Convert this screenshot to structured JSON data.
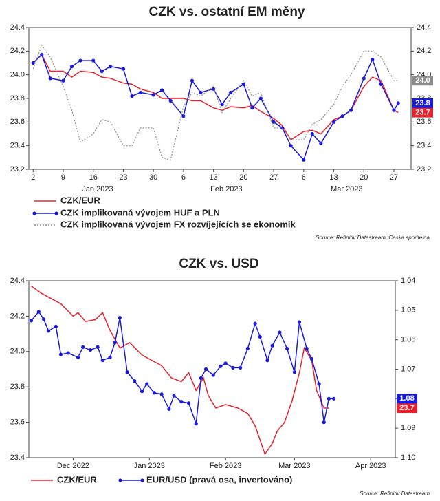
{
  "chart_data": [
    {
      "type": "line",
      "title": "CZK vs. ostatní EM měny",
      "x": [
        2,
        4,
        6,
        9,
        11,
        13,
        16,
        18,
        20,
        23,
        25,
        27,
        30,
        32,
        34,
        37,
        39,
        41,
        44,
        46,
        48,
        51,
        53,
        55,
        58,
        60,
        62,
        65,
        67,
        69,
        72,
        74,
        76,
        79,
        81,
        83,
        86,
        87
      ],
      "series": [
        {
          "name": "CZK/EUR",
          "color": "#e8202a",
          "end_label": "23.7",
          "values": [
            24.1,
            24.17,
            24.03,
            24.03,
            23.98,
            24.03,
            24.02,
            23.98,
            23.97,
            23.93,
            23.92,
            23.88,
            23.85,
            23.8,
            23.8,
            23.8,
            23.78,
            23.78,
            23.72,
            23.7,
            23.73,
            23.72,
            23.74,
            23.69,
            23.63,
            23.57,
            23.45,
            23.52,
            23.53,
            23.5,
            23.62,
            23.65,
            23.7,
            23.9,
            23.98,
            23.95,
            23.7,
            23.68
          ]
        },
        {
          "name": "CZK implikovaná vývojem HUF a PLN",
          "color": "#1a1adb",
          "markers": true,
          "end_label": "23.8",
          "values": [
            24.1,
            24.17,
            23.97,
            23.95,
            24.07,
            24.12,
            24.12,
            24.03,
            24.07,
            24.05,
            23.82,
            23.85,
            23.83,
            23.87,
            23.78,
            23.65,
            23.95,
            23.85,
            23.88,
            23.75,
            23.85,
            23.92,
            23.72,
            23.8,
            23.6,
            23.55,
            23.4,
            23.28,
            23.5,
            23.42,
            23.6,
            23.65,
            23.7,
            23.97,
            24.13,
            23.92,
            23.7,
            23.76
          ]
        },
        {
          "name": "CZK implikovaná vývojem FX rozvíjejících se ekonomik",
          "color": "#8c8c8c",
          "style": "dotted",
          "end_label": "24.0",
          "values": [
            24.05,
            24.25,
            24.15,
            23.9,
            23.7,
            23.43,
            23.5,
            23.62,
            23.6,
            23.4,
            23.4,
            23.55,
            23.55,
            23.3,
            23.28,
            23.73,
            23.85,
            23.82,
            23.9,
            23.68,
            23.8,
            23.95,
            23.82,
            23.85,
            23.55,
            23.55,
            23.45,
            23.45,
            23.58,
            23.62,
            23.75,
            23.9,
            24.0,
            24.2,
            24.2,
            24.15,
            23.95,
            23.95
          ]
        }
      ],
      "xlim": [
        1,
        90
      ],
      "xticks": [
        2,
        9,
        16,
        23,
        30,
        {
          "value": 37,
          "label": "6"
        },
        {
          "value": 44,
          "label": "13"
        },
        {
          "value": 51,
          "label": "20"
        },
        {
          "value": 58,
          "label": "27"
        },
        {
          "value": 65,
          "label": "6"
        },
        {
          "value": 72,
          "label": "13"
        },
        {
          "value": 79,
          "label": "20"
        },
        {
          "value": 86,
          "label": "27"
        }
      ],
      "x_months": [
        {
          "value": 17,
          "label": "Jan 2023"
        },
        {
          "value": 47,
          "label": "Feb 2023"
        },
        {
          "value": 75,
          "label": "Mar 2023"
        }
      ],
      "ylim": [
        23.2,
        24.4
      ],
      "yticks": [
        23.2,
        23.4,
        23.6,
        23.8,
        {
          "value": 24,
          "label": "24.0"
        },
        24.2,
        24.4
      ],
      "y2lim": [
        23.2,
        24.4
      ],
      "y2ticks": [
        23.2,
        23.4,
        23.6,
        23.8,
        {
          "value": 24,
          "label": "24.0"
        },
        24.2,
        24.4
      ],
      "grid": false,
      "source": "Source: Refinitiv Datastream, Ceska sporitelna"
    },
    {
      "type": "line",
      "title": "CZK vs. USD",
      "series": [
        {
          "name": "CZK/EUR",
          "color": "#e8202a",
          "end_label": "23.7",
          "x": [
            -48,
            -44,
            -40,
            -36,
            -31,
            -29,
            -26,
            -22,
            -19,
            -16,
            -12,
            -8,
            -3,
            1,
            5,
            9,
            13,
            16,
            19,
            22,
            24,
            27,
            31,
            36,
            40,
            43,
            45,
            47,
            50,
            52,
            55,
            58,
            61,
            63,
            66,
            68,
            71,
            73
          ],
          "values": [
            24.37,
            24.33,
            24.3,
            24.27,
            24.2,
            24.22,
            24.17,
            24.18,
            24.22,
            24.12,
            24.02,
            24.05,
            23.98,
            23.95,
            23.92,
            23.85,
            23.83,
            23.88,
            23.78,
            23.85,
            23.75,
            23.68,
            23.7,
            23.68,
            23.65,
            23.58,
            23.5,
            23.42,
            23.48,
            23.55,
            23.6,
            23.72,
            23.88,
            24.02,
            23.95,
            23.78,
            23.68,
            23.68
          ]
        },
        {
          "name": "EUR/USD (pravá osa, invertováno)",
          "color": "#1a1adb",
          "markers": true,
          "axis": "y2",
          "end_label": "1.08",
          "x": [
            -48,
            -45,
            -43,
            -41,
            -38,
            -36,
            -33,
            -29,
            -27,
            -24,
            -21,
            -19,
            -16,
            -14,
            -12,
            -9,
            -6,
            -3,
            -1,
            2,
            5,
            8,
            10,
            13,
            16,
            19,
            21,
            23,
            26,
            29,
            31,
            34,
            37,
            40,
            43,
            45,
            48,
            50,
            53,
            56,
            59,
            61,
            64,
            66,
            69,
            71,
            73,
            75
          ],
          "values": [
            1.0535,
            1.0505,
            1.053,
            1.057,
            1.0555,
            1.065,
            1.0645,
            1.066,
            1.0625,
            1.0635,
            1.0625,
            1.067,
            1.066,
            1.061,
            1.0525,
            1.071,
            1.074,
            1.0775,
            1.075,
            1.078,
            1.0785,
            1.0835,
            1.079,
            1.081,
            1.0815,
            1.0885,
            1.073,
            1.07,
            1.072,
            1.069,
            1.068,
            1.0695,
            1.0695,
            1.063,
            1.0545,
            1.059,
            1.067,
            1.062,
            1.0575,
            1.063,
            1.071,
            1.054,
            1.063,
            1.0665,
            1.075,
            1.088,
            1.08,
            1.08
          ]
        }
      ],
      "xlim": [
        -49,
        100
      ],
      "xticks": [
        {
          "value": -31,
          "label": "Dec 2022"
        },
        {
          "value": 0,
          "label": "Jan 2023"
        },
        {
          "value": 31,
          "label": "Feb 2023"
        },
        {
          "value": 59,
          "label": "Mar 2023"
        },
        {
          "value": 90,
          "label": "Apr 2023"
        }
      ],
      "ylim": [
        23.4,
        24.4
      ],
      "yticks": [
        23.4,
        23.6,
        23.8,
        {
          "value": 24,
          "label": "24.0"
        },
        24.2,
        24.4
      ],
      "y2lim": [
        1.04,
        1.1
      ],
      "y2_inverted": true,
      "y2ticks": [
        1.04,
        1.05,
        1.06,
        1.07,
        1.08,
        1.09,
        {
          "value": 1.1,
          "label": "1.10"
        }
      ],
      "grid": false,
      "source": "Source: Refinitiv Datastream"
    }
  ]
}
